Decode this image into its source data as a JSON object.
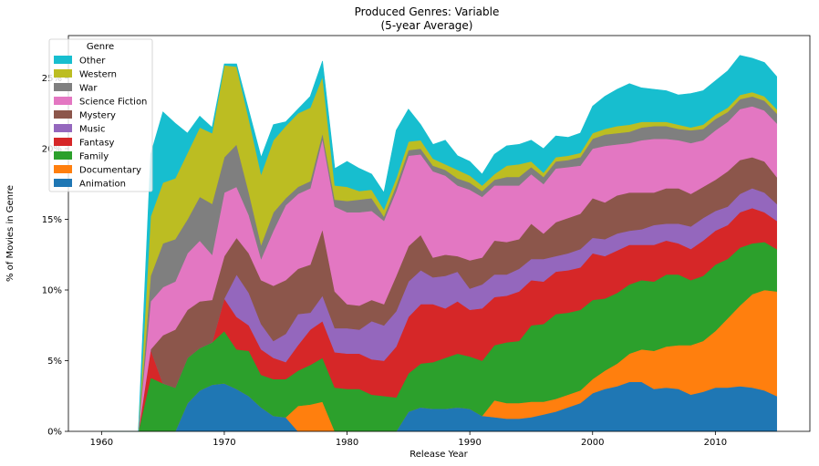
{
  "chart_data": {
    "type": "area",
    "stacked": true,
    "title": "Produced Genres: Variable",
    "subtitle": "(5-year Average)",
    "xlabel": "Release Year",
    "ylabel": "% of Movies in Genre",
    "xlim": [
      1957.3,
      2017.7
    ],
    "ylim": [
      0,
      0.28
    ],
    "xticks": [
      1960,
      1970,
      1980,
      1990,
      2000,
      2010
    ],
    "xtick_labels": [
      "1960",
      "1970",
      "1980",
      "1990",
      "2000",
      "2010"
    ],
    "yticks": [
      0,
      0.05,
      0.1,
      0.15,
      0.2,
      0.25
    ],
    "ytick_labels": [
      "0%",
      "5%",
      "10%",
      "15%",
      "20%",
      "25%"
    ],
    "grid": false,
    "legend": {
      "title": "Genre",
      "placement": "upper left"
    },
    "x": [
      1960,
      1961,
      1962,
      1963,
      1964,
      1965,
      1966,
      1967,
      1968,
      1969,
      1970,
      1971,
      1972,
      1973,
      1974,
      1975,
      1976,
      1977,
      1978,
      1979,
      1980,
      1981,
      1982,
      1983,
      1984,
      1985,
      1986,
      1987,
      1988,
      1989,
      1990,
      1991,
      1992,
      1993,
      1994,
      1995,
      1996,
      1997,
      1998,
      1999,
      2000,
      2001,
      2002,
      2003,
      2004,
      2005,
      2006,
      2007,
      2008,
      2009,
      2010,
      2011,
      2012,
      2013,
      2014,
      2015
    ],
    "series": [
      {
        "name": "Animation",
        "color": "#1f77b4",
        "values": [
          0,
          0,
          0,
          0,
          0,
          0,
          0,
          0.02,
          0.029,
          0.033,
          0.034,
          0.03,
          0.025,
          0.017,
          0.011,
          0.01,
          0,
          0,
          0,
          0,
          0,
          0,
          0,
          0,
          0,
          0.014,
          0.017,
          0.016,
          0.016,
          0.017,
          0.016,
          0.011,
          0.01,
          0.009,
          0.009,
          0.01,
          0.012,
          0.014,
          0.017,
          0.02,
          0.027,
          0.03,
          0.032,
          0.035,
          0.035,
          0.03,
          0.031,
          0.03,
          0.026,
          0.028,
          0.031,
          0.031,
          0.032,
          0.031,
          0.029,
          0.025
        ]
      },
      {
        "name": "Documentary",
        "color": "#ff7f0e",
        "values": [
          0,
          0,
          0,
          0,
          0,
          0,
          0,
          0,
          0,
          0,
          0,
          0,
          0,
          0,
          0,
          0,
          0.018,
          0.019,
          0.021,
          0,
          0,
          0,
          0,
          0,
          0,
          0,
          0,
          0,
          0,
          0,
          0,
          0,
          0.012,
          0.011,
          0.011,
          0.011,
          0.009,
          0.009,
          0.009,
          0.009,
          0.01,
          0.013,
          0.016,
          0.02,
          0.023,
          0.027,
          0.029,
          0.031,
          0.035,
          0.036,
          0.04,
          0.049,
          0.057,
          0.066,
          0.071,
          0.074
        ]
      },
      {
        "name": "Family",
        "color": "#2ca02c",
        "values": [
          0,
          0,
          0,
          0,
          0.038,
          0.034,
          0.031,
          0.032,
          0.03,
          0.03,
          0.037,
          0.028,
          0.032,
          0.023,
          0.026,
          0.027,
          0.025,
          0.028,
          0.031,
          0.031,
          0.03,
          0.03,
          0.026,
          0.025,
          0.024,
          0.027,
          0.031,
          0.033,
          0.036,
          0.038,
          0.037,
          0.039,
          0.039,
          0.043,
          0.044,
          0.054,
          0.055,
          0.06,
          0.058,
          0.057,
          0.056,
          0.051,
          0.05,
          0.049,
          0.049,
          0.049,
          0.051,
          0.05,
          0.046,
          0.046,
          0.047,
          0.042,
          0.041,
          0.036,
          0.034,
          0.03
        ]
      },
      {
        "name": "Fantasy",
        "color": "#d62728",
        "values": [
          0,
          0,
          0,
          0,
          0.02,
          0,
          0,
          0,
          0,
          0,
          0.023,
          0.023,
          0.018,
          0.018,
          0.015,
          0.012,
          0.018,
          0.025,
          0.026,
          0.025,
          0.025,
          0.025,
          0.025,
          0.025,
          0.036,
          0.04,
          0.042,
          0.041,
          0.035,
          0.037,
          0.033,
          0.037,
          0.034,
          0.033,
          0.035,
          0.032,
          0.03,
          0.03,
          0.03,
          0.03,
          0.033,
          0.03,
          0.03,
          0.028,
          0.025,
          0.026,
          0.024,
          0.022,
          0.022,
          0.025,
          0.024,
          0.024,
          0.025,
          0.025,
          0.021,
          0.02
        ]
      },
      {
        "name": "Music",
        "color": "#9467bd",
        "values": [
          0,
          0,
          0,
          0,
          0,
          0,
          0,
          0,
          0,
          0,
          0,
          0.03,
          0.023,
          0.018,
          0.012,
          0.02,
          0.022,
          0.012,
          0.018,
          0.017,
          0.018,
          0.017,
          0.027,
          0.025,
          0.025,
          0.025,
          0.024,
          0.019,
          0.023,
          0.021,
          0.015,
          0.017,
          0.016,
          0.015,
          0.016,
          0.015,
          0.016,
          0.011,
          0.012,
          0.013,
          0.011,
          0.012,
          0.012,
          0.01,
          0.011,
          0.014,
          0.012,
          0.014,
          0.016,
          0.016,
          0.014,
          0.013,
          0.013,
          0.014,
          0.014,
          0.012
        ]
      },
      {
        "name": "Mystery",
        "color": "#8c564b",
        "values": [
          0,
          0,
          0,
          0,
          0,
          0.034,
          0.041,
          0.034,
          0.033,
          0.03,
          0.03,
          0.026,
          0.028,
          0.031,
          0.039,
          0.038,
          0.032,
          0.034,
          0.047,
          0.026,
          0.017,
          0.017,
          0.015,
          0.015,
          0.025,
          0.025,
          0.025,
          0.014,
          0.015,
          0.011,
          0.02,
          0.019,
          0.024,
          0.023,
          0.021,
          0.025,
          0.018,
          0.024,
          0.025,
          0.025,
          0.028,
          0.026,
          0.027,
          0.027,
          0.026,
          0.023,
          0.025,
          0.025,
          0.023,
          0.022,
          0.022,
          0.025,
          0.024,
          0.022,
          0.022,
          0.019
        ]
      },
      {
        "name": "Science Fiction",
        "color": "#e377c2",
        "values": [
          0,
          0,
          0,
          0,
          0.034,
          0.034,
          0.034,
          0.04,
          0.043,
          0.032,
          0.045,
          0.036,
          0.027,
          0.015,
          0.039,
          0.053,
          0.053,
          0.054,
          0.064,
          0.06,
          0.065,
          0.066,
          0.063,
          0.059,
          0.06,
          0.064,
          0.057,
          0.061,
          0.056,
          0.05,
          0.05,
          0.043,
          0.039,
          0.04,
          0.038,
          0.035,
          0.035,
          0.038,
          0.036,
          0.034,
          0.035,
          0.04,
          0.036,
          0.035,
          0.037,
          0.038,
          0.035,
          0.034,
          0.036,
          0.033,
          0.035,
          0.035,
          0.036,
          0.036,
          0.036,
          0.038
        ]
      },
      {
        "name": "War",
        "color": "#7f7f7f",
        "values": [
          0,
          0,
          0,
          0,
          0.018,
          0.031,
          0.03,
          0.024,
          0.031,
          0.036,
          0.025,
          0.03,
          0.016,
          0.01,
          0.013,
          0.005,
          0.005,
          0.005,
          0.004,
          0.005,
          0.008,
          0.009,
          0.009,
          0.003,
          0.004,
          0.004,
          0.004,
          0.004,
          0.004,
          0.005,
          0.005,
          0.004,
          0.004,
          0.006,
          0.006,
          0.005,
          0.005,
          0.005,
          0.005,
          0.006,
          0.007,
          0.008,
          0.008,
          0.008,
          0.009,
          0.009,
          0.009,
          0.008,
          0.009,
          0.008,
          0.008,
          0.007,
          0.007,
          0.007,
          0.007,
          0.007
        ]
      },
      {
        "name": "Western",
        "color": "#bcbd22",
        "values": [
          0,
          0,
          0,
          0,
          0.042,
          0.043,
          0.043,
          0.047,
          0.049,
          0.05,
          0.065,
          0.055,
          0.052,
          0.05,
          0.051,
          0.051,
          0.052,
          0.052,
          0.04,
          0.01,
          0.01,
          0.006,
          0.006,
          0.005,
          0.005,
          0.006,
          0.006,
          0.005,
          0.004,
          0.006,
          0.005,
          0.004,
          0.004,
          0.008,
          0.009,
          0.004,
          0.003,
          0.003,
          0.003,
          0.003,
          0.004,
          0.004,
          0.005,
          0.005,
          0.004,
          0.003,
          0.003,
          0.003,
          0.002,
          0.003,
          0.003,
          0.003,
          0.003,
          0.003,
          0.003,
          0.003
        ]
      },
      {
        "name": "Other",
        "color": "#17becf",
        "values": [
          0,
          0,
          0,
          0,
          0.044,
          0.05,
          0.039,
          0.014,
          0.008,
          0.004,
          0.001,
          0.002,
          0.006,
          0.012,
          0.011,
          0.003,
          0.003,
          0.008,
          0.011,
          0.012,
          0.018,
          0.016,
          0.011,
          0.012,
          0.034,
          0.023,
          0.011,
          0.01,
          0.017,
          0.01,
          0.01,
          0.008,
          0.014,
          0.014,
          0.014,
          0.015,
          0.017,
          0.015,
          0.013,
          0.014,
          0.019,
          0.023,
          0.026,
          0.029,
          0.024,
          0.023,
          0.022,
          0.021,
          0.024,
          0.024,
          0.024,
          0.026,
          0.028,
          0.024,
          0.024,
          0.023
        ]
      }
    ]
  }
}
